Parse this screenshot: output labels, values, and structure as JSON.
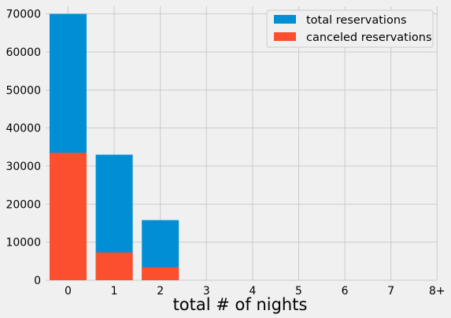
{
  "chart_data": {
    "type": "bar",
    "stacked_overlay": true,
    "categories": [
      "0",
      "1",
      "2",
      "3",
      "4",
      "5",
      "6",
      "7",
      "8+"
    ],
    "series": [
      {
        "name": "total reservations",
        "color": "#008fd5",
        "values": [
          70000,
          33000,
          15800,
          0,
          0,
          0,
          0,
          0,
          0
        ]
      },
      {
        "name": "canceled reservations",
        "color": "#fc4f30",
        "values": [
          33500,
          7300,
          3400,
          0,
          0,
          0,
          0,
          0,
          0
        ]
      }
    ],
    "xlabel": "total # of nights",
    "ylabel": "",
    "ylim": [
      0,
      72000
    ],
    "yticks": [
      0,
      10000,
      20000,
      30000,
      40000,
      50000,
      60000,
      70000
    ],
    "grid": true,
    "legend_position": "top-right",
    "background": "#f0f0f0",
    "grid_color": "#cbcbcb"
  }
}
